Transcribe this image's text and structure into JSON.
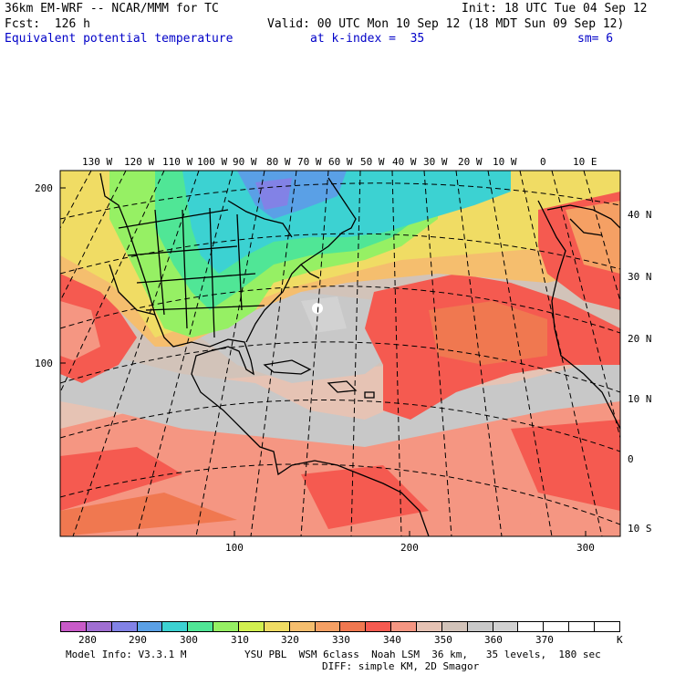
{
  "header": {
    "model": "36km EM-WRF -- NCAR/MMM for TC",
    "init": "Init: 18 UTC Tue 04 Sep 12",
    "fcst": "Fcst:  126 h",
    "valid": "Valid: 00 UTC Mon 10 Sep 12 (18 MDT Sun 09 Sep 12)",
    "field": "Equivalent potential temperature",
    "level": "at k-index =  35",
    "smooth": "sm= 6"
  },
  "map": {
    "top_labels": [
      "130 W",
      "120 W",
      "110 W",
      "100 W",
      "90 W",
      "80 W",
      "70 W",
      "60 W",
      "50 W",
      "40 W",
      "30 W",
      "20 W",
      "10 W",
      "0",
      "10 E"
    ],
    "right_labels": [
      "40 N",
      "30 N",
      "20 N",
      "10 N",
      "0",
      "10 S"
    ],
    "left_labels": [
      "200",
      "100"
    ],
    "bottom_labels": [
      "100",
      "200",
      "300"
    ]
  },
  "colorbar": {
    "labels": [
      "280",
      "290",
      "300",
      "310",
      "320",
      "330",
      "340",
      "350",
      "360",
      "370"
    ],
    "unit": "K",
    "colors": [
      "#c85ac8",
      "#a06ed2",
      "#8282e6",
      "#5aa0e6",
      "#3cd2d2",
      "#50e696",
      "#96f064",
      "#d2f050",
      "#f0dc64",
      "#f5be6e",
      "#f5a064",
      "#f07850",
      "#f55a50",
      "#f59682",
      "#e6c3b4",
      "#d2c3b9",
      "#c8c8c8",
      "#d2d2d2",
      "#ffffff",
      "#ffffff",
      "#ffffff",
      "#ffffff"
    ]
  },
  "footer": {
    "model_info": "Model Info: V3.3.1 M",
    "physics": "YSU PBL  WSM 6class  Noah LSM  36 km,   35 levels,  180 sec",
    "diff": "DIFF: simple KM, 2D Smagor"
  }
}
